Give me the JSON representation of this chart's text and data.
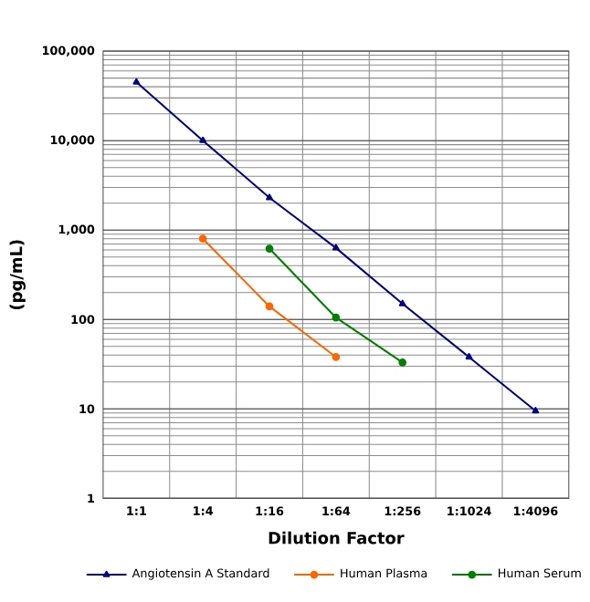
{
  "chart_data": {
    "type": "line",
    "xlabel": "Dilution Factor",
    "ylabel": "(pg/mL)",
    "categories": [
      "1:1",
      "1:4",
      "1:16",
      "1:64",
      "1:256",
      "1:1024",
      "1:4096"
    ],
    "series": [
      {
        "name": "Angiotensin A Standard",
        "color": "#000080",
        "marker": "triangle",
        "values": [
          45000,
          10000,
          2300,
          630,
          150,
          38,
          9.5
        ]
      },
      {
        "name": "Human Plasma",
        "color": "#ff6600",
        "marker": "circle",
        "values": [
          null,
          800,
          140,
          38,
          null,
          null,
          null
        ]
      },
      {
        "name": "Human Serum",
        "color": "#008000",
        "marker": "circle",
        "values": [
          null,
          null,
          620,
          105,
          33,
          null,
          null
        ]
      }
    ],
    "log": "y",
    "ylim": [
      1,
      100000
    ],
    "yticks": [
      1,
      10,
      100,
      {
        "value": 1000,
        "label": "1,000"
      },
      {
        "value": 10000,
        "label": "10,000"
      },
      {
        "value": 100000,
        "label": "100,000"
      }
    ],
    "grid": true,
    "legend": "bottom"
  }
}
